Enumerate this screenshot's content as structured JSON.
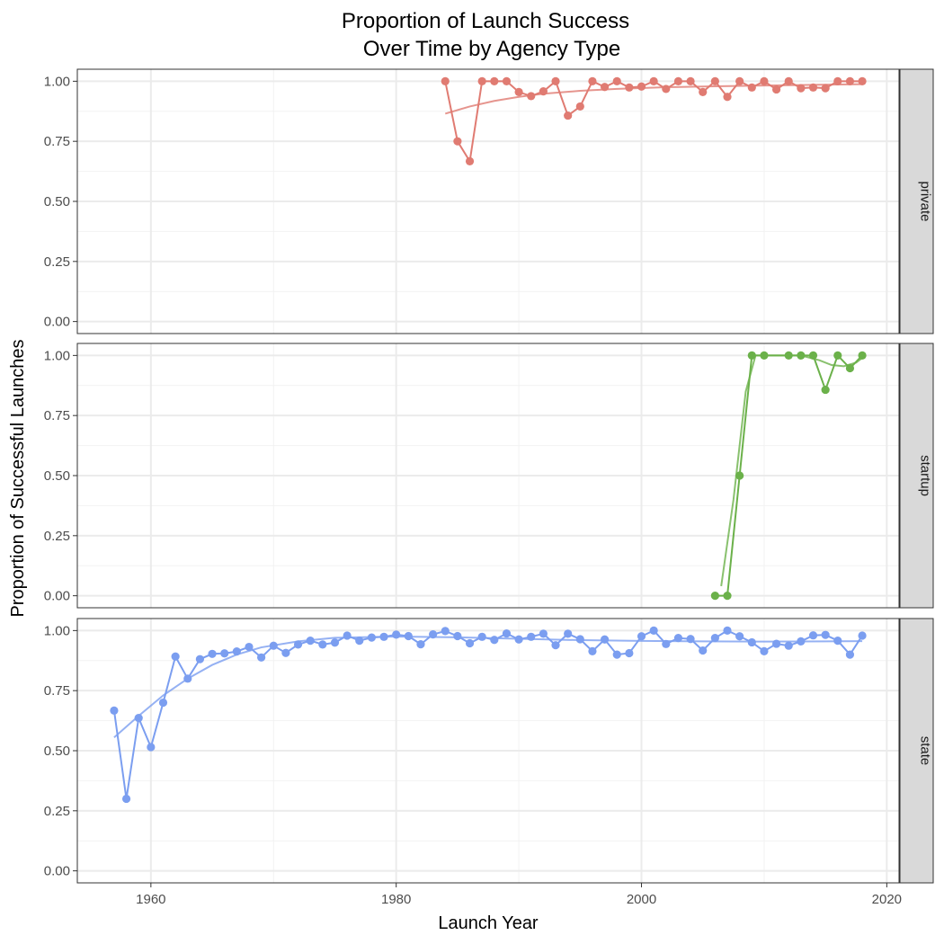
{
  "chart_data": {
    "type": "line",
    "title_line1": "Proportion of Launch Success",
    "title_line2": "Over Time by Agency Type",
    "xlabel": "Launch Year",
    "ylabel": "Proportion of Successful Launches",
    "xlim": [
      1954,
      2021
    ],
    "ylim": [
      -0.05,
      1.05
    ],
    "x_ticks": [
      1960,
      1980,
      2000,
      2020
    ],
    "x_tick_labels": [
      "1960",
      "1980",
      "2000",
      "2020"
    ],
    "y_ticks": [
      0,
      0.25,
      0.5,
      0.75,
      1.0
    ],
    "y_tick_labels": [
      "0.00",
      "0.25",
      "0.50",
      "0.75",
      "1.00"
    ],
    "grid": true,
    "facets": [
      "private",
      "startup",
      "state"
    ],
    "series": [
      {
        "facet": "private",
        "color": "#E07B72",
        "points": [
          [
            1984,
            1.0
          ],
          [
            1985,
            0.75
          ],
          [
            1986,
            0.667
          ],
          [
            1987,
            1.0
          ],
          [
            1988,
            1.0
          ],
          [
            1989,
            1.0
          ],
          [
            1990,
            0.955
          ],
          [
            1991,
            0.938
          ],
          [
            1992,
            0.958
          ],
          [
            1993,
            1.0
          ],
          [
            1994,
            0.857
          ],
          [
            1995,
            0.895
          ],
          [
            1996,
            1.0
          ],
          [
            1997,
            0.976
          ],
          [
            1998,
            1.0
          ],
          [
            1999,
            0.974
          ],
          [
            2000,
            0.978
          ],
          [
            2001,
            1.0
          ],
          [
            2002,
            0.968
          ],
          [
            2003,
            1.0
          ],
          [
            2004,
            1.0
          ],
          [
            2005,
            0.955
          ],
          [
            2006,
            1.0
          ],
          [
            2007,
            0.935
          ],
          [
            2008,
            1.0
          ],
          [
            2009,
            0.974
          ],
          [
            2010,
            1.0
          ],
          [
            2011,
            0.966
          ],
          [
            2012,
            1.0
          ],
          [
            2013,
            0.971
          ],
          [
            2014,
            0.974
          ],
          [
            2015,
            0.971
          ],
          [
            2016,
            1.0
          ],
          [
            2017,
            1.0
          ],
          [
            2018,
            1.0
          ]
        ],
        "smooth": [
          [
            1984,
            0.865
          ],
          [
            1986,
            0.895
          ],
          [
            1988,
            0.918
          ],
          [
            1990,
            0.935
          ],
          [
            1992,
            0.948
          ],
          [
            1995,
            0.96
          ],
          [
            1998,
            0.968
          ],
          [
            2002,
            0.975
          ],
          [
            2006,
            0.979
          ],
          [
            2010,
            0.982
          ],
          [
            2014,
            0.985
          ],
          [
            2018,
            0.988
          ]
        ]
      },
      {
        "facet": "startup",
        "color": "#6BB14A",
        "points": [
          [
            2006,
            0.0
          ],
          [
            2007,
            0.0
          ],
          [
            2008,
            0.5
          ],
          [
            2009,
            1.0
          ],
          [
            2010,
            1.0
          ],
          [
            2012,
            1.0
          ],
          [
            2013,
            1.0
          ],
          [
            2014,
            1.0
          ],
          [
            2015,
            0.857
          ],
          [
            2016,
            1.0
          ],
          [
            2017,
            0.947
          ],
          [
            2018,
            1.0
          ]
        ],
        "smooth": [
          [
            2006.5,
            0.04
          ],
          [
            2007.5,
            0.4
          ],
          [
            2008.5,
            0.85
          ],
          [
            2009.3,
            1.0
          ],
          [
            2011,
            1.0
          ],
          [
            2013,
            1.0
          ],
          [
            2014.5,
            0.98
          ],
          [
            2015.5,
            0.96
          ],
          [
            2016.5,
            0.955
          ],
          [
            2017.5,
            0.97
          ],
          [
            2018,
            0.99
          ]
        ]
      },
      {
        "facet": "state",
        "color": "#7B9EF0",
        "points": [
          [
            1957,
            0.667
          ],
          [
            1958,
            0.3
          ],
          [
            1959,
            0.636
          ],
          [
            1960,
            0.515
          ],
          [
            1961,
            0.7
          ],
          [
            1962,
            0.892
          ],
          [
            1963,
            0.8
          ],
          [
            1964,
            0.881
          ],
          [
            1965,
            0.903
          ],
          [
            1966,
            0.905
          ],
          [
            1967,
            0.913
          ],
          [
            1968,
            0.932
          ],
          [
            1969,
            0.888
          ],
          [
            1970,
            0.937
          ],
          [
            1971,
            0.907
          ],
          [
            1972,
            0.942
          ],
          [
            1973,
            0.958
          ],
          [
            1974,
            0.942
          ],
          [
            1975,
            0.95
          ],
          [
            1976,
            0.979
          ],
          [
            1977,
            0.958
          ],
          [
            1978,
            0.971
          ],
          [
            1979,
            0.974
          ],
          [
            1980,
            0.983
          ],
          [
            1981,
            0.977
          ],
          [
            1982,
            0.943
          ],
          [
            1983,
            0.984
          ],
          [
            1984,
            0.998
          ],
          [
            1985,
            0.977
          ],
          [
            1986,
            0.947
          ],
          [
            1987,
            0.974
          ],
          [
            1988,
            0.961
          ],
          [
            1989,
            0.988
          ],
          [
            1990,
            0.963
          ],
          [
            1991,
            0.974
          ],
          [
            1992,
            0.987
          ],
          [
            1993,
            0.939
          ],
          [
            1994,
            0.987
          ],
          [
            1995,
            0.964
          ],
          [
            1996,
            0.914
          ],
          [
            1997,
            0.963
          ],
          [
            1998,
            0.9
          ],
          [
            1999,
            0.906
          ],
          [
            2000,
            0.976
          ],
          [
            2001,
            1.0
          ],
          [
            2002,
            0.944
          ],
          [
            2003,
            0.969
          ],
          [
            2004,
            0.965
          ],
          [
            2005,
            0.917
          ],
          [
            2006,
            0.969
          ],
          [
            2007,
            1.0
          ],
          [
            2008,
            0.976
          ],
          [
            2009,
            0.951
          ],
          [
            2010,
            0.914
          ],
          [
            2011,
            0.945
          ],
          [
            2012,
            0.937
          ],
          [
            2013,
            0.955
          ],
          [
            2014,
            0.98
          ],
          [
            2015,
            0.982
          ],
          [
            2016,
            0.958
          ],
          [
            2017,
            0.9
          ],
          [
            2018,
            0.979
          ]
        ],
        "smooth": [
          [
            1957,
            0.555
          ],
          [
            1959,
            0.645
          ],
          [
            1961,
            0.73
          ],
          [
            1963,
            0.8
          ],
          [
            1965,
            0.857
          ],
          [
            1967,
            0.9
          ],
          [
            1969,
            0.93
          ],
          [
            1972,
            0.955
          ],
          [
            1975,
            0.97
          ],
          [
            1980,
            0.975
          ],
          [
            1985,
            0.972
          ],
          [
            1990,
            0.966
          ],
          [
            1995,
            0.96
          ],
          [
            2000,
            0.957
          ],
          [
            2005,
            0.955
          ],
          [
            2010,
            0.954
          ],
          [
            2015,
            0.955
          ],
          [
            2018,
            0.956
          ]
        ]
      }
    ]
  }
}
